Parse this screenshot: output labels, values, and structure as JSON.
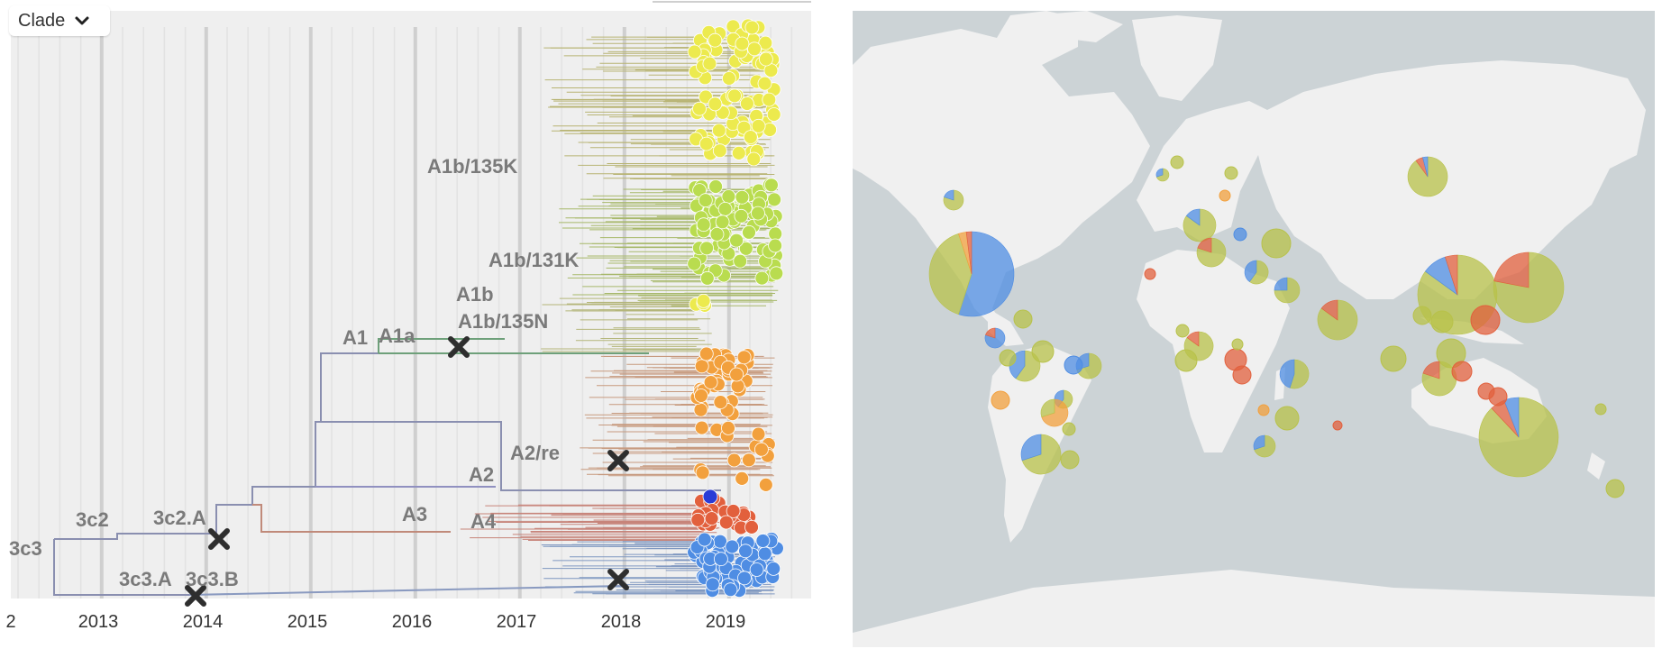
{
  "color_by": {
    "label": "Clade",
    "icon": "chevron-down-icon"
  },
  "timeline": {
    "ticks": [
      "2",
      "2013",
      "2014",
      "2015",
      "2016",
      "2017",
      "2018",
      "2019"
    ]
  },
  "clade_labels": {
    "c3c3": "3c3",
    "c3c2": "3c2",
    "c3c2A": "3c2.A",
    "c3c3A": "3c3.A",
    "c3c3B": "3c3.B",
    "A1": "A1",
    "A1a": "A1a",
    "A1b": "A1b",
    "A1b131K": "A1b/131K",
    "A1b135K": "A1b/135K",
    "A1b135N": "A1b/135N",
    "A2": "A2",
    "A2re": "A2/re",
    "A3": "A3",
    "A4": "A4"
  },
  "colors": {
    "panel_bg": "#efefef",
    "map_ocean": "#ccd3d6",
    "map_land": "#f0f0f0",
    "clade_label": "#7a7a7a",
    "yellow": "#ecea4e",
    "lime": "#b9dc4f",
    "orange": "#f2a03d",
    "red": "#e2603d",
    "blue": "#4f8de3",
    "olive": "#b8c24a"
  },
  "icons": {
    "extinct_marker": "x-marker-icon"
  }
}
